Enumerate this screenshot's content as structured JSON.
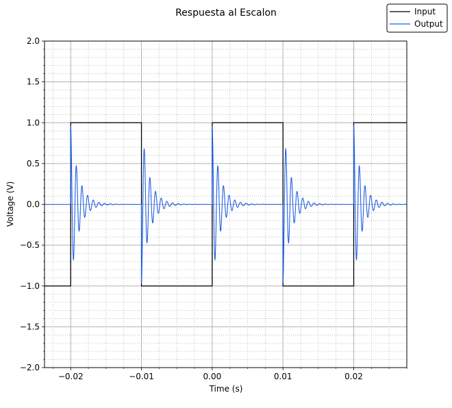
{
  "chart_data": {
    "type": "line",
    "title": "Respuesta al Escalon",
    "xlabel": "Time (s)",
    "ylabel": "Voltage (V)",
    "xlim": [
      -0.0237,
      0.0275
    ],
    "ylim": [
      -2.0,
      2.0
    ],
    "xticks": [
      -0.02,
      -0.01,
      0.0,
      0.01,
      0.02
    ],
    "xtick_labels": [
      "−0.02",
      "−0.01",
      "0.00",
      "0.01",
      "0.02"
    ],
    "yticks": [
      -2.0,
      -1.5,
      -1.0,
      -0.5,
      0.0,
      0.5,
      1.0,
      1.5,
      2.0
    ],
    "ytick_labels": [
      "−2.0",
      "−1.5",
      "−1.0",
      "−0.5",
      "0.0",
      "0.5",
      "1.0",
      "1.5",
      "2.0"
    ],
    "grid": "major solid, minor dotted",
    "legend_position": "top-right",
    "series": [
      {
        "name": "Input",
        "color": "#000000",
        "kind": "square wave",
        "x": [
          -0.0237,
          -0.02,
          -0.02,
          -0.01,
          -0.01,
          0.0,
          0.0,
          0.01,
          0.01,
          0.02,
          0.02,
          0.0275
        ],
        "y": [
          -1,
          -1,
          1,
          1,
          -1,
          -1,
          1,
          1,
          -1,
          -1,
          1,
          1
        ]
      },
      {
        "name": "Output",
        "color": "#1f5fe6",
        "kind": "damped oscillation at each input edge, settling to 0",
        "baseline": 0.0,
        "edges": [
          {
            "t": -0.02,
            "direction": 1,
            "first_peak": 0.97
          },
          {
            "t": -0.01,
            "direction": -1,
            "first_peak": -0.97
          },
          {
            "t": 0.0,
            "direction": 1,
            "first_peak": 0.97
          },
          {
            "t": 0.01,
            "direction": -1,
            "first_peak": -0.97
          },
          {
            "t": 0.02,
            "direction": 1,
            "first_peak": 0.97
          }
        ],
        "ringing_frequency_hz": 1250,
        "decay_time_s": 0.0011
      }
    ]
  }
}
